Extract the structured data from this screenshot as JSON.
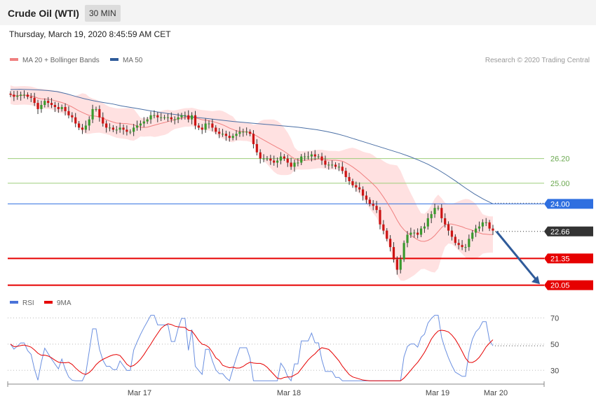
{
  "header": {
    "title": "Crude Oil (WTI)",
    "interval": "30 MIN"
  },
  "timestamp": "Thursday, March 19, 2020 8:45:59 AM CET",
  "legend_top": [
    {
      "label": "MA 20 + Bollinger Bands",
      "color": "#f08080"
    },
    {
      "label": "MA 50",
      "color": "#2f5b9a"
    }
  ],
  "credit": "Research © 2020 Trading Central",
  "legend_bottom": [
    {
      "label": "RSI",
      "color": "#4a73d9"
    },
    {
      "label": "9MA",
      "color": "#e60000"
    }
  ],
  "chart_data": [
    {
      "type": "candlestick",
      "title": "Crude Oil (WTI)",
      "interval": "30 MIN",
      "x_ticks": [
        "Mar 17",
        "Mar 18",
        "Mar 19",
        "Mar 20"
      ],
      "ylim": [
        19.9,
        30.5
      ],
      "last_price": "22.66",
      "levels": [
        {
          "value": 26.2,
          "label": "26.20",
          "kind": "resistance-green"
        },
        {
          "value": 25.0,
          "label": "25.00",
          "kind": "resistance-green"
        },
        {
          "value": 24.0,
          "label": "24.00",
          "kind": "pivot"
        },
        {
          "value": 21.35,
          "label": "21.35",
          "kind": "support"
        },
        {
          "value": 20.05,
          "label": "20.05",
          "kind": "support"
        }
      ],
      "close_series": [
        29.3,
        29.2,
        29.25,
        29.3,
        29.3,
        29.2,
        29.15,
        28.9,
        28.6,
        28.8,
        29.0,
        28.9,
        28.8,
        28.7,
        28.6,
        28.7,
        28.5,
        28.3,
        28.2,
        27.9,
        27.7,
        27.6,
        27.8,
        28.1,
        28.6,
        28.6,
        28.2,
        27.9,
        27.7,
        27.7,
        27.6,
        27.6,
        27.7,
        27.6,
        27.5,
        27.5,
        27.7,
        27.8,
        27.9,
        28.0,
        28.1,
        28.3,
        28.3,
        28.2,
        28.2,
        28.2,
        28.2,
        28.1,
        28.1,
        28.2,
        28.3,
        28.3,
        28.1,
        28.3,
        27.8,
        27.7,
        27.6,
        27.9,
        27.9,
        27.7,
        27.5,
        27.4,
        27.4,
        27.3,
        27.2,
        27.3,
        27.4,
        27.5,
        27.5,
        27.5,
        27.4,
        26.9,
        26.5,
        26.2,
        26.2,
        26.2,
        26.1,
        26.0,
        26.1,
        26.3,
        26.2,
        26.0,
        25.8,
        26.0,
        26.0,
        26.3,
        26.3,
        26.3,
        26.4,
        26.3,
        26.3,
        26.1,
        25.9,
        25.9,
        25.9,
        25.8,
        25.8,
        25.6,
        25.3,
        25.1,
        24.9,
        24.8,
        24.7,
        24.4,
        24.2,
        24.0,
        23.9,
        23.7,
        23.0,
        22.7,
        22.3,
        21.9,
        21.3,
        20.8,
        21.3,
        22.1,
        22.5,
        22.6,
        22.6,
        22.5,
        22.8,
        22.9,
        23.3,
        23.5,
        23.8,
        23.8,
        23.3,
        23.0,
        22.7,
        22.4,
        22.1,
        22.0,
        21.9,
        21.9,
        22.3,
        22.6,
        22.8,
        22.9,
        23.1,
        23.1,
        22.8,
        22.7
      ],
      "ma50": [
        29.55,
        29.56,
        29.55,
        29.53,
        29.5,
        29.45,
        29.35,
        29.22,
        29.1,
        29.0,
        28.92,
        28.85,
        28.75,
        28.68,
        28.6,
        28.52,
        28.45,
        28.38,
        28.32,
        28.25,
        28.2,
        28.15,
        28.1,
        28.05,
        28.0,
        27.96,
        27.92,
        27.88,
        27.84,
        27.8,
        27.76,
        27.72,
        27.66,
        27.6,
        27.52,
        27.42,
        27.3,
        27.16,
        27.02,
        26.88,
        26.74,
        26.6,
        26.46,
        26.3,
        26.12,
        25.92,
        25.68,
        25.4,
        25.1,
        24.78,
        24.48,
        24.22,
        24.0
      ],
      "rsi": {
        "ylim": [
          20,
          75
        ],
        "ticks": [
          70,
          50,
          30
        ]
      }
    }
  ]
}
